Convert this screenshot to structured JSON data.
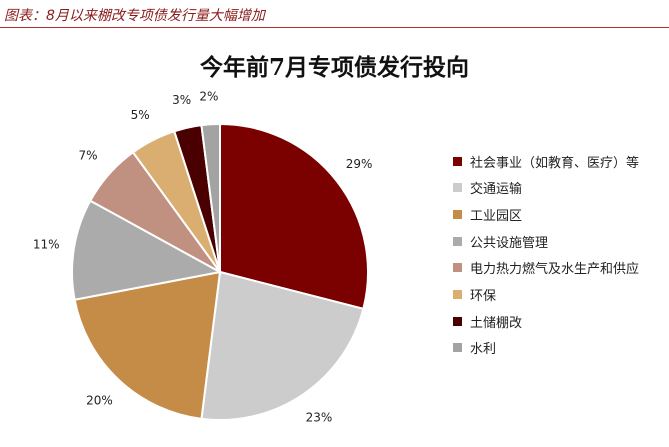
{
  "caption": "图表：8月以来棚改专项债发行量大幅增加",
  "chart_data": {
    "type": "pie",
    "title": "今年前7月专项债发行投向",
    "slices": [
      {
        "label": "社会事业（如教育、医疗）等",
        "value": 29,
        "value_label": "29%",
        "color": "#7b0000"
      },
      {
        "label": "交通运输",
        "value": 23,
        "value_label": "23%",
        "color": "#cccccc"
      },
      {
        "label": "工业园区",
        "value": 20,
        "value_label": "20%",
        "color": "#c48c46"
      },
      {
        "label": "公共设施管理",
        "value": 11,
        "value_label": "11%",
        "color": "#ababab"
      },
      {
        "label": "电力热力燃气及水生产和供应",
        "value": 7,
        "value_label": "7%",
        "color": "#c09080"
      },
      {
        "label": "环保",
        "value": 5,
        "value_label": "5%",
        "color": "#d9ae70"
      },
      {
        "label": "土储棚改",
        "value": 3,
        "value_label": "3%",
        "color": "#4a0000"
      },
      {
        "label": "水利",
        "value": 2,
        "value_label": "2%",
        "color": "#a3a3a3"
      }
    ],
    "start_angle": "12 o'clock",
    "direction": "clockwise",
    "legend_position": "right"
  }
}
